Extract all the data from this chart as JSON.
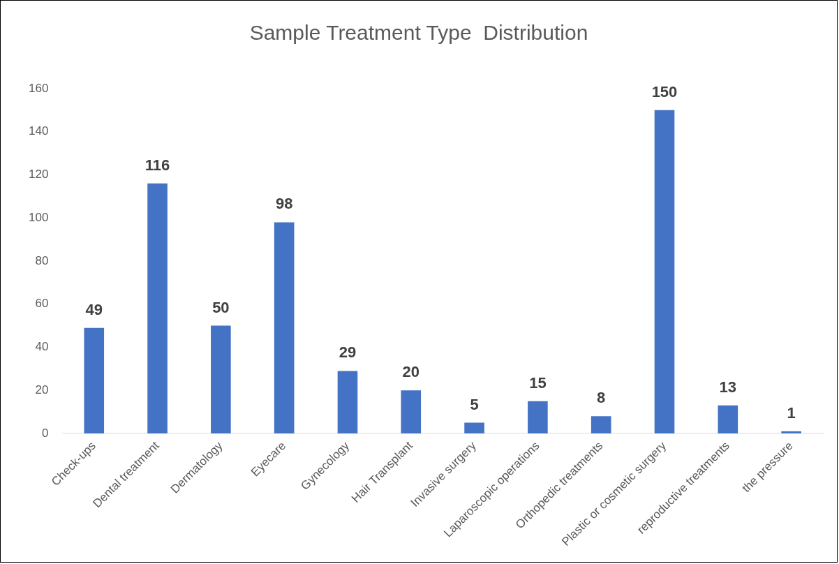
{
  "chart_data": {
    "type": "bar",
    "title": "Sample Treatment Type  Distribution",
    "categories": [
      "Check-ups",
      "Dental treatment",
      "Dermatology",
      "Eyecare",
      "Gynecology",
      "Hair Transplant",
      "Invasive surgery",
      "Laparoscopic operations",
      "Orthopedic treatments",
      "Plastic or cosmetic surgery",
      "reproductive treatments",
      "the pressure"
    ],
    "values": [
      49,
      116,
      50,
      98,
      29,
      20,
      5,
      15,
      8,
      150,
      13,
      1
    ],
    "color": "#4472c4",
    "ylim": [
      0,
      160
    ],
    "yticks": [
      0,
      20,
      40,
      60,
      80,
      100,
      120,
      140,
      160
    ],
    "grid": false,
    "legend": false,
    "data_labels": true
  }
}
